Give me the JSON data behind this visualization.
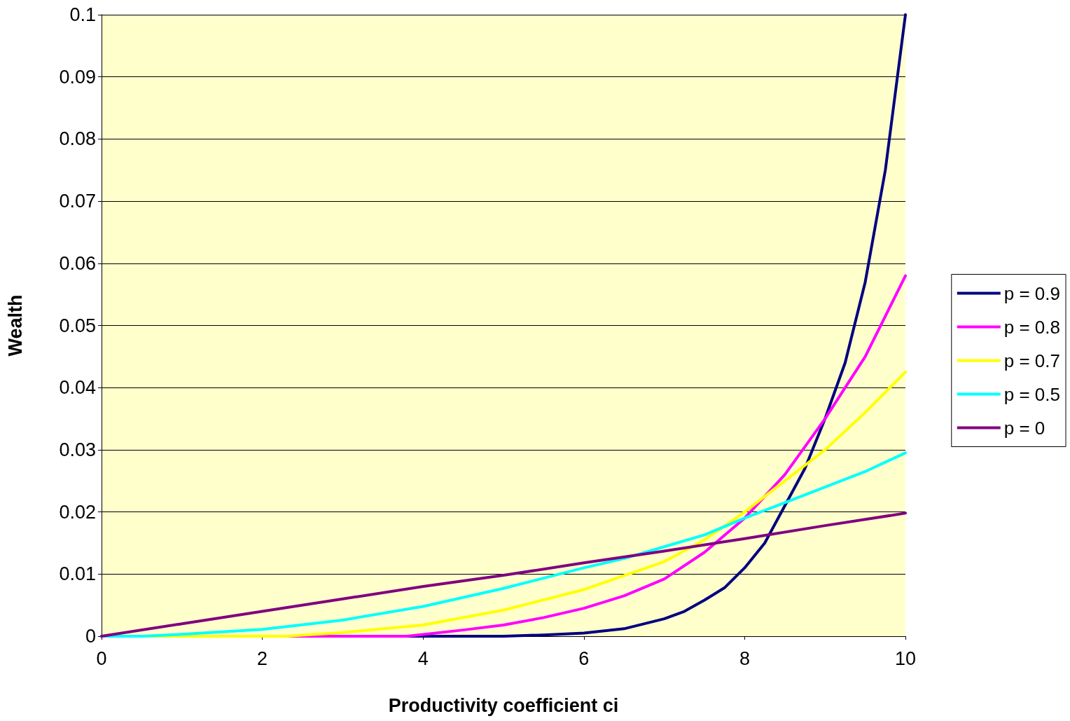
{
  "chart_data": {
    "type": "line",
    "xlabel": "Productivity coefficient ci",
    "ylabel": "Wealth",
    "xlim": [
      0,
      10
    ],
    "xticks": [
      0,
      2,
      4,
      6,
      8,
      10
    ],
    "ylim": [
      0,
      0.1
    ],
    "yticks": [
      0,
      0.01,
      0.02,
      0.03,
      0.04,
      0.05,
      0.06,
      0.07,
      0.08,
      0.09,
      0.1
    ],
    "grid": "y",
    "legend": "right",
    "marker": "none",
    "line_style": "solid",
    "series": [
      {
        "name": "p = 0.9",
        "color": "#000080",
        "x": [
          0,
          5,
          5.5,
          6,
          6.5,
          7,
          7.25,
          7.5,
          7.75,
          8,
          8.25,
          8.5,
          8.75,
          9,
          9.25,
          9.5,
          9.75,
          10
        ],
        "values": [
          0,
          0,
          0.0002,
          0.0005,
          0.0012,
          0.0028,
          0.004,
          0.0058,
          0.0078,
          0.011,
          0.015,
          0.021,
          0.027,
          0.035,
          0.044,
          0.057,
          0.075,
          0.1
        ]
      },
      {
        "name": "p = 0.8",
        "color": "#ff00ff",
        "x": [
          0,
          3.8,
          4.5,
          5,
          5.5,
          6,
          6.5,
          7,
          7.5,
          8,
          8.5,
          9,
          9.5,
          10
        ],
        "values": [
          0,
          0,
          0.001,
          0.0018,
          0.003,
          0.0045,
          0.0065,
          0.0092,
          0.0135,
          0.019,
          0.026,
          0.035,
          0.045,
          0.058
        ]
      },
      {
        "name": "p = 0.7",
        "color": "#ffff00",
        "x": [
          0,
          2.3,
          3,
          4,
          5,
          6,
          7,
          7.5,
          8,
          8.5,
          9,
          9.5,
          10
        ],
        "values": [
          0,
          0,
          0.0006,
          0.0018,
          0.0042,
          0.0075,
          0.012,
          0.0155,
          0.02,
          0.025,
          0.03,
          0.036,
          0.0425
        ]
      },
      {
        "name": "p = 0.5",
        "color": "#00ffff",
        "x": [
          0,
          0.5,
          1,
          2,
          3,
          4,
          5,
          6,
          6.5,
          7,
          7.5,
          8,
          8.5,
          9,
          9.5,
          10
        ],
        "values": [
          0,
          0,
          0.0003,
          0.0011,
          0.0026,
          0.0048,
          0.0077,
          0.011,
          0.0125,
          0.0144,
          0.0163,
          0.019,
          0.0215,
          0.024,
          0.0265,
          0.0295
        ]
      },
      {
        "name": "p = 0",
        "color": "#800080",
        "x": [
          0,
          1,
          2,
          3,
          4,
          5,
          6,
          7,
          8,
          9,
          10
        ],
        "values": [
          0,
          0.002,
          0.004,
          0.006,
          0.008,
          0.0098,
          0.0118,
          0.0137,
          0.0157,
          0.0178,
          0.0198
        ]
      }
    ]
  }
}
